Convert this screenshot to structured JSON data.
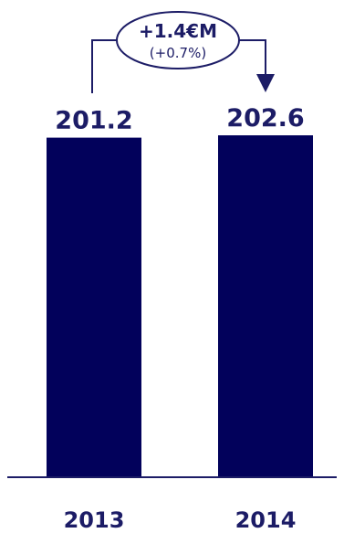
{
  "chart_data": {
    "type": "bar",
    "categories": [
      "2013",
      "2014"
    ],
    "values": [
      201.2,
      202.6
    ],
    "value_labels": [
      "201.2",
      "202.6"
    ],
    "title": "",
    "xlabel": "",
    "ylabel": "",
    "bar_color": "#02015b",
    "text_color": "#1c1c66",
    "axis_color": "#1c1c66",
    "grid": false,
    "legend": "none",
    "annotation": {
      "change": "+1.4€M",
      "percent": "(+0.7%)",
      "from_category": "2013",
      "to_category": "2014"
    }
  }
}
